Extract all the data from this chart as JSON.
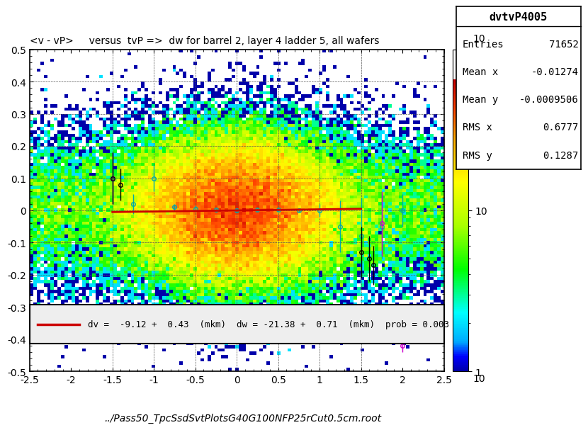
{
  "title": "<v - vP>     versus  tvP =>  dw for barrel 2, layer 4 ladder 5, all wafers",
  "xlabel": "../Pass50_TpcSsdSvtPlotsG40G100NFP25rCut0.5cm.root",
  "xlim": [
    -2.5,
    2.5
  ],
  "ylim": [
    -0.5,
    0.5
  ],
  "colorbar_ticks": [
    1,
    10,
    100
  ],
  "stats_title": "dvtvP4005",
  "stats_entries": "71652",
  "stats_meanx": "-0.01274",
  "stats_meany": "-0.0009506",
  "stats_rmsx": "0.6777",
  "stats_rmsy": "0.1287",
  "legend_text": "dv =  -9.12 +  0.43  (mkm)  dw = -21.38 +  0.71  (mkm)  prob = 0.003",
  "fit_line_color": "#cc0000",
  "background_color": "#ffffff",
  "plot_bg_color": "#ffffff",
  "grid_color": "#aaaaaa",
  "xticks": [
    -2.5,
    -2,
    -1.5,
    -1,
    -0.5,
    0,
    0.5,
    1,
    1.5,
    2,
    2.5
  ],
  "yticks": [
    -0.5,
    -0.4,
    -0.3,
    -0.2,
    -0.1,
    0,
    0.1,
    0.2,
    0.3,
    0.4,
    0.5
  ],
  "dashed_vlines": [
    -1.5,
    -1.0,
    -0.5,
    0.0,
    0.5,
    1.0,
    1.5
  ],
  "dashed_hlines": [
    -0.4,
    -0.3,
    -0.2,
    -0.1,
    0.1,
    0.2,
    0.3,
    0.4
  ],
  "seed": 42
}
